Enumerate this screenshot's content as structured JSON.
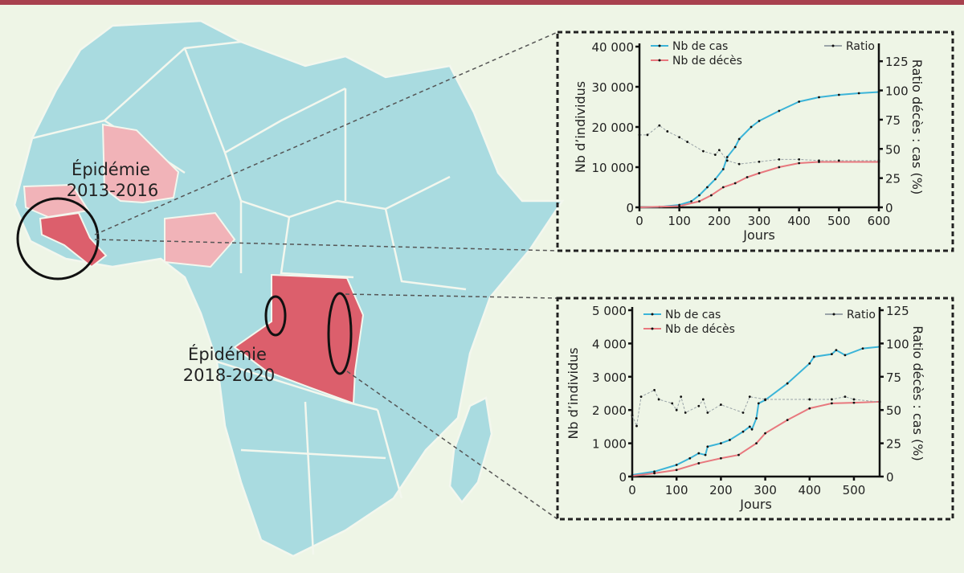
{
  "colors": {
    "topbar": "#a8414e",
    "background": "#eef5e6",
    "land": "#a9dbe0",
    "border": "#f3f7ee",
    "outbreak_light": "#f1b3b8",
    "outbreak_dark": "#dc5f6c",
    "cases": "#3bb4d8",
    "deaths": "#e8787e",
    "ratio": "#9aa4a8",
    "marker": "#111111"
  },
  "map": {
    "labels": [
      {
        "line1": "Épidémie",
        "line2": "2013-2016"
      },
      {
        "line1": "Épidémie",
        "line2": "2018-2020"
      }
    ]
  },
  "chart_data": [
    {
      "type": "line",
      "xlabel": "Jours",
      "ylabel": "Nb d’individus",
      "y2label": "Ratio décès : cas (%)",
      "xlim": [
        0,
        600
      ],
      "ylim": [
        0,
        40000
      ],
      "y2lim": [
        0,
        137.5
      ],
      "xticks": [
        0,
        100,
        200,
        300,
        400,
        500,
        600
      ],
      "yticks": [
        {
          "v": 0,
          "t": "0"
        },
        {
          "v": 10000,
          "t": "10 000"
        },
        {
          "v": 20000,
          "t": "20 000"
        },
        {
          "v": 30000,
          "t": "30 000"
        },
        {
          "v": 40000,
          "t": "40 000"
        }
      ],
      "y2ticks": [
        0,
        25,
        50,
        75,
        100,
        125
      ],
      "grid": false,
      "legend": "top",
      "series": [
        {
          "name": "Nb de cas",
          "axis": "left",
          "color": "#3bb4d8",
          "points": [
            [
              0,
              0
            ],
            [
              50,
              100
            ],
            [
              100,
              600
            ],
            [
              130,
              1500
            ],
            [
              150,
              3000
            ],
            [
              170,
              5000
            ],
            [
              190,
              7000
            ],
            [
              210,
              9500
            ],
            [
              220,
              12500
            ],
            [
              240,
              15000
            ],
            [
              250,
              17000
            ],
            [
              280,
              20000
            ],
            [
              300,
              21500
            ],
            [
              350,
              24000
            ],
            [
              400,
              26300
            ],
            [
              450,
              27400
            ],
            [
              500,
              28000
            ],
            [
              550,
              28400
            ],
            [
              600,
              28700
            ]
          ]
        },
        {
          "name": "Nb de décès",
          "axis": "left",
          "color": "#e8787e",
          "points": [
            [
              0,
              0
            ],
            [
              100,
              300
            ],
            [
              150,
              1500
            ],
            [
              180,
              3000
            ],
            [
              210,
              5000
            ],
            [
              240,
              6000
            ],
            [
              270,
              7500
            ],
            [
              300,
              8500
            ],
            [
              350,
              10000
            ],
            [
              400,
              11000
            ],
            [
              450,
              11300
            ],
            [
              600,
              11300
            ]
          ]
        },
        {
          "name": "Ratio",
          "axis": "right",
          "color": "#9aa4a8",
          "points": [
            [
              0,
              62
            ],
            [
              20,
              62
            ],
            [
              50,
              70
            ],
            [
              70,
              65
            ],
            [
              100,
              60
            ],
            [
              120,
              56
            ],
            [
              160,
              48
            ],
            [
              190,
              45
            ],
            [
              200,
              49
            ],
            [
              220,
              40
            ],
            [
              250,
              37
            ],
            [
              300,
              39
            ],
            [
              350,
              41
            ],
            [
              400,
              41
            ],
            [
              450,
              40
            ],
            [
              500,
              40
            ],
            [
              600,
              40
            ]
          ]
        }
      ]
    },
    {
      "type": "line",
      "xlabel": "Jours",
      "ylabel": "Nb d’individus",
      "y2label": "Ratio décès : cas (%)",
      "xlim": [
        0,
        558
      ],
      "ylim": [
        0,
        5000
      ],
      "y2lim": [
        0,
        125
      ],
      "xticks": [
        0,
        100,
        200,
        300,
        400,
        500
      ],
      "yticks": [
        {
          "v": 0,
          "t": "0"
        },
        {
          "v": 1000,
          "t": "1 000"
        },
        {
          "v": 2000,
          "t": "2 000"
        },
        {
          "v": 3000,
          "t": "3 000"
        },
        {
          "v": 4000,
          "t": "4 000"
        },
        {
          "v": 5000,
          "t": "5 000"
        }
      ],
      "y2ticks": [
        0,
        25,
        50,
        75,
        100,
        125
      ],
      "grid": false,
      "legend": "top",
      "series": [
        {
          "name": "Nb de cas",
          "axis": "left",
          "color": "#3bb4d8",
          "points": [
            [
              0,
              50
            ],
            [
              50,
              150
            ],
            [
              100,
              350
            ],
            [
              130,
              550
            ],
            [
              150,
              700
            ],
            [
              165,
              650
            ],
            [
              170,
              900
            ],
            [
              200,
              1000
            ],
            [
              220,
              1100
            ],
            [
              250,
              1350
            ],
            [
              265,
              1500
            ],
            [
              270,
              1420
            ],
            [
              280,
              1750
            ],
            [
              285,
              2200
            ],
            [
              300,
              2300
            ],
            [
              350,
              2800
            ],
            [
              400,
              3400
            ],
            [
              410,
              3600
            ],
            [
              450,
              3680
            ],
            [
              460,
              3800
            ],
            [
              480,
              3650
            ],
            [
              520,
              3850
            ],
            [
              558,
              3900
            ]
          ]
        },
        {
          "name": "Nb de décès",
          "axis": "left",
          "color": "#e8787e",
          "points": [
            [
              0,
              20
            ],
            [
              50,
              100
            ],
            [
              100,
              200
            ],
            [
              150,
              400
            ],
            [
              200,
              550
            ],
            [
              240,
              650
            ],
            [
              280,
              1000
            ],
            [
              300,
              1300
            ],
            [
              350,
              1700
            ],
            [
              400,
              2050
            ],
            [
              450,
              2200
            ],
            [
              500,
              2220
            ],
            [
              558,
              2250
            ]
          ]
        },
        {
          "name": "Ratio",
          "axis": "right",
          "color": "#9aa4a8",
          "points": [
            [
              0,
              46
            ],
            [
              10,
              38
            ],
            [
              20,
              60
            ],
            [
              50,
              65
            ],
            [
              60,
              58
            ],
            [
              90,
              55
            ],
            [
              100,
              50
            ],
            [
              110,
              60
            ],
            [
              120,
              48
            ],
            [
              150,
              53
            ],
            [
              160,
              58
            ],
            [
              170,
              48
            ],
            [
              200,
              54
            ],
            [
              250,
              48
            ],
            [
              265,
              60
            ],
            [
              300,
              58
            ],
            [
              400,
              58
            ],
            [
              450,
              58
            ],
            [
              480,
              60
            ],
            [
              500,
              58
            ],
            [
              558,
              56
            ]
          ]
        }
      ]
    }
  ]
}
